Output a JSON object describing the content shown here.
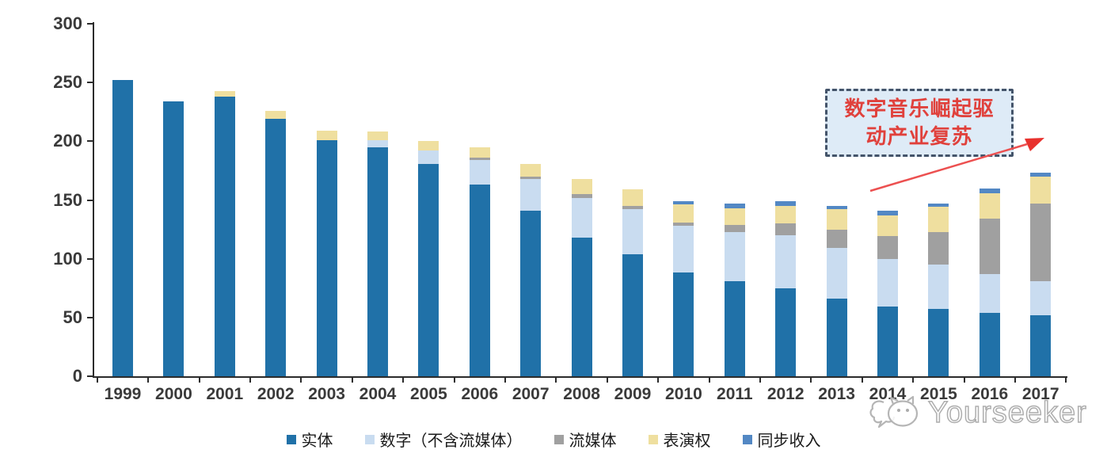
{
  "chart_data": {
    "type": "bar",
    "stacked": true,
    "title": "",
    "xlabel": "",
    "ylabel": "",
    "categories": [
      "1999",
      "2000",
      "2001",
      "2002",
      "2003",
      "2004",
      "2005",
      "2006",
      "2007",
      "2008",
      "2009",
      "2010",
      "2011",
      "2012",
      "2013",
      "2014",
      "2015",
      "2016",
      "2017"
    ],
    "series": [
      {
        "name": "实体",
        "color": "#2071A8",
        "values": [
          252,
          234,
          238,
          219,
          201,
          195,
          181,
          163,
          141,
          118,
          104,
          88,
          81,
          75,
          66,
          59,
          57,
          54,
          52
        ]
      },
      {
        "name": "数字（不含流媒体）",
        "color": "#C9DCF0",
        "values": [
          0,
          0,
          0,
          0,
          0,
          6,
          11,
          21,
          27,
          34,
          38,
          40,
          42,
          45,
          43,
          41,
          38,
          33,
          29
        ]
      },
      {
        "name": "流媒体",
        "color": "#A0A0A0",
        "values": [
          0,
          0,
          0,
          0,
          0,
          0,
          0,
          2,
          2,
          3,
          3,
          3,
          6,
          10,
          16,
          19,
          28,
          47,
          66
        ]
      },
      {
        "name": "表演权",
        "color": "#EFDF9F",
        "values": [
          0,
          0,
          5,
          7,
          8,
          7,
          8,
          9,
          11,
          13,
          14,
          15,
          14,
          15,
          17,
          18,
          21,
          22,
          23
        ]
      },
      {
        "name": "同步收入",
        "color": "#5388C4",
        "values": [
          0,
          0,
          0,
          0,
          0,
          0,
          0,
          0,
          0,
          0,
          0,
          3,
          4,
          4,
          3,
          4,
          3,
          4,
          3
        ]
      }
    ],
    "totals": [
      252,
      234,
      243,
      226,
      209,
      208,
      200,
      195,
      181,
      168,
      159,
      149,
      147,
      149,
      145,
      141,
      147,
      160,
      173
    ],
    "ylim": [
      0,
      300
    ],
    "yticks": [
      0,
      50,
      100,
      150,
      200,
      250,
      300
    ],
    "grid": false,
    "legend_position": "bottom"
  },
  "annotation": {
    "text": "数字音乐崛起驱动产业复苏",
    "lines": [
      "数字音乐崛起驱",
      "动产业复苏"
    ],
    "text_color": "#E0413C",
    "box_fill": "#DEEBF7",
    "box_border": "#44546A",
    "arrow_color": "#EC5050"
  },
  "watermark": {
    "brand": "Yourseeker"
  }
}
